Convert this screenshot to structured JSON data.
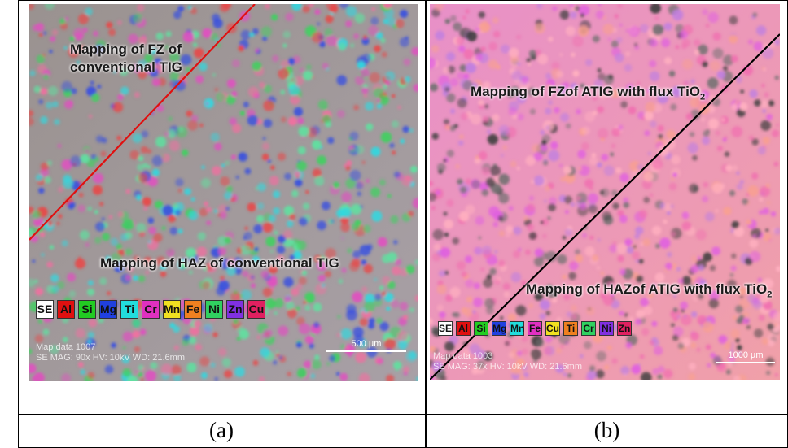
{
  "panels": [
    {
      "annotations": [
        {
          "lines": [
            "Mapping of FZ of",
            "conventional TIG"
          ]
        },
        {
          "lines": [
            "Mapping of HAZ of conventional  TIG"
          ]
        }
      ],
      "elements": [
        {
          "label": "SE",
          "color": "#ffffff"
        },
        {
          "label": "Al",
          "color": "#e01010"
        },
        {
          "label": "Si",
          "color": "#22cc22"
        },
        {
          "label": "Mg",
          "color": "#2040e0"
        },
        {
          "label": "Ti",
          "color": "#22dddd"
        },
        {
          "label": "Cr",
          "color": "#e030c0"
        },
        {
          "label": "Mn",
          "color": "#f0e020"
        },
        {
          "label": "Fe",
          "color": "#f08020"
        },
        {
          "label": "Ni",
          "color": "#30d060"
        },
        {
          "label": "Zn",
          "color": "#8030e0"
        },
        {
          "label": "Cu",
          "color": "#e02060"
        }
      ],
      "map_info": [
        "Map data 1007",
        "SE  MAG: 90x  HV: 10kV  WD: 21.6mm"
      ],
      "scale_bar": "500 µm",
      "caption": "(a)"
    },
    {
      "annotations": [
        {
          "lines": [
            "Mapping of FZof ATIG with flux TiO"
          ],
          "subscript": "2"
        },
        {
          "lines": [
            "Mapping of HAZof ATIG with flux TiO"
          ],
          "subscript": "2"
        }
      ],
      "elements": [
        {
          "label": "SE",
          "color": "#ffffff"
        },
        {
          "label": "Al",
          "color": "#e01010"
        },
        {
          "label": "Si",
          "color": "#22cc22"
        },
        {
          "label": "Mg",
          "color": "#2040e0"
        },
        {
          "label": "Mn",
          "color": "#22dddd"
        },
        {
          "label": "Fe",
          "color": "#e030c0"
        },
        {
          "label": "Cu",
          "color": "#f0e020"
        },
        {
          "label": "Ti",
          "color": "#f08020"
        },
        {
          "label": "Cr",
          "color": "#30d060"
        },
        {
          "label": "Ni",
          "color": "#8030e0"
        },
        {
          "label": "Zn",
          "color": "#e02060"
        }
      ],
      "map_info": [
        "Map data 1003",
        "SE  MAG: 37x  HV: 10kV  WD: 21.6mm"
      ],
      "scale_bar": "1000 µm",
      "caption": "(b)"
    }
  ]
}
